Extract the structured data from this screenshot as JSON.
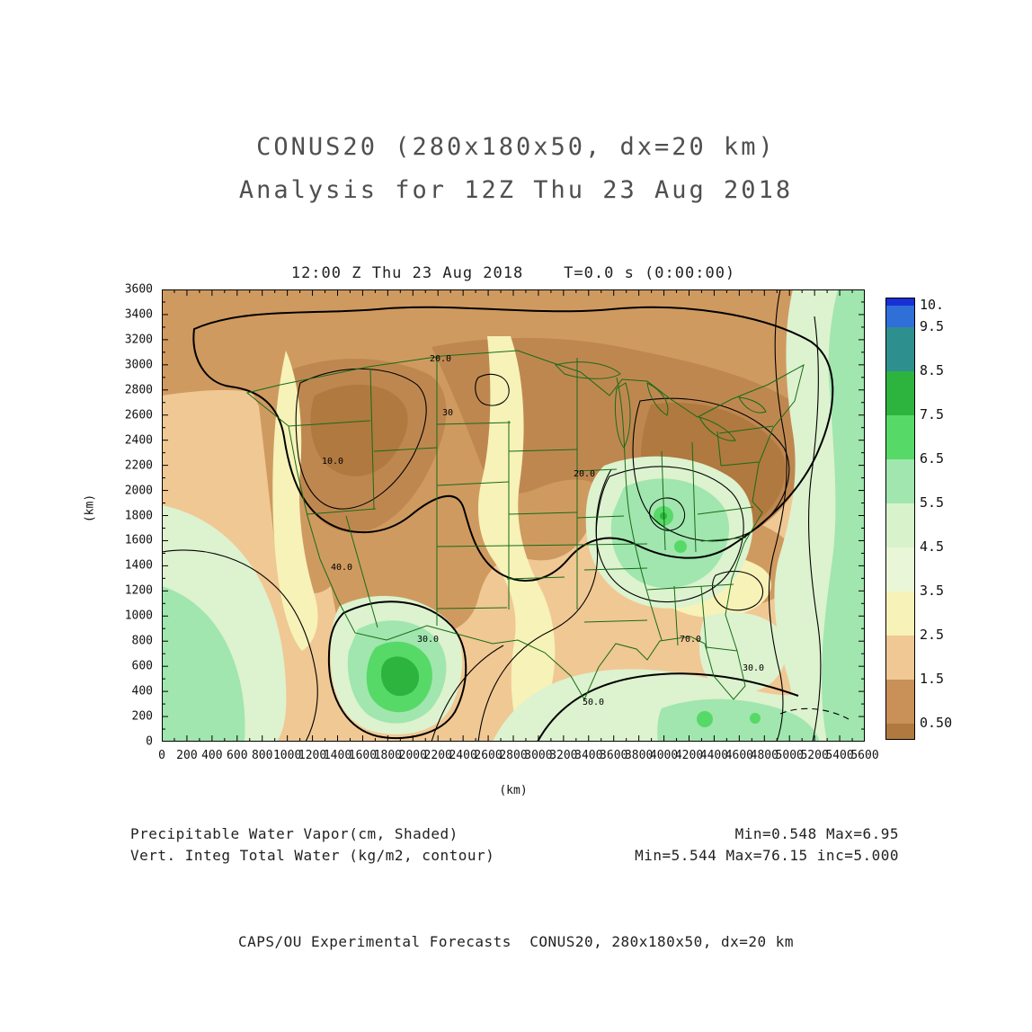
{
  "page": {
    "title_line1": "CONUS20 (280x180x50, dx=20 km)",
    "title_line2": "Analysis for 12Z Thu 23 Aug 2018",
    "footer": "CAPS/OU Experimental Forecasts  CONUS20, 280x180x50, dx=20 km",
    "background_color": "#ffffff"
  },
  "chart_data": {
    "type": "heatmap",
    "title": "12:00 Z Thu 23 Aug 2018    T=0.0 s (0:00:00)",
    "xlabel": "(km)",
    "ylabel": "(km)",
    "xlim": [
      0,
      5600
    ],
    "ylim": [
      0,
      3600
    ],
    "tick_step_km": 200,
    "x_tick_labels": [
      "0",
      "200",
      "400",
      "600",
      "800",
      "1000",
      "1200",
      "1400",
      "1600",
      "1800",
      "2000",
      "2200",
      "2400",
      "2600",
      "2800",
      "3000",
      "3200",
      "3400",
      "3600",
      "3800",
      "4000",
      "4200",
      "4400",
      "4600",
      "4800",
      "5000",
      "5200",
      "5400",
      "5600"
    ],
    "y_tick_labels": [
      "3600",
      "3400",
      "3200",
      "3000",
      "2800",
      "2600",
      "2400",
      "2200",
      "2000",
      "1800",
      "1600",
      "1400",
      "1200",
      "1000",
      "800",
      "600",
      "400",
      "200",
      "0"
    ],
    "shaded_field": {
      "name": "Precipitable Water Vapor",
      "units": "cm",
      "min": 0.548,
      "max": 6.95
    },
    "contour_field": {
      "name": "Vert. Integ Total Water",
      "units": "kg/m2",
      "min": 5.544,
      "max": 76.15,
      "interval": 5.0
    },
    "colorbar": {
      "labels": [
        "10.",
        "9.5",
        "8.5",
        "7.5",
        "6.5",
        "5.5",
        "4.5",
        "3.5",
        "2.5",
        "1.5",
        "0.50"
      ],
      "segments": [
        {
          "height": 8,
          "color": "#1a2fd6",
          "label": "10."
        },
        {
          "height": 24,
          "color": "#2f6fd8",
          "label": "9.5"
        },
        {
          "height": 49,
          "color": "#2e8f8f",
          "label": "8.5"
        },
        {
          "height": 49,
          "color": "#2cb43e",
          "label": "7.5"
        },
        {
          "height": 49,
          "color": "#57d968",
          "label": "6.5"
        },
        {
          "height": 49,
          "color": "#a0e6ae",
          "label": "5.5"
        },
        {
          "height": 49,
          "color": "#d8f2cc",
          "label": "4.5"
        },
        {
          "height": 49,
          "color": "#eaf6d8",
          "label": "3.5"
        },
        {
          "height": 49,
          "color": "#f6f2b8",
          "label": "2.5"
        },
        {
          "height": 49,
          "color": "#f0c894",
          "label": "1.5"
        },
        {
          "height": 49,
          "color": "#c99058",
          "label": "0.50"
        },
        {
          "height": 17,
          "color": "#b0793f",
          "label": ""
        }
      ]
    },
    "contour_labels": [
      {
        "text": "20.0",
        "x": 298,
        "y": 80
      },
      {
        "text": "30",
        "x": 312,
        "y": 140
      },
      {
        "text": "10.0",
        "x": 178,
        "y": 194
      },
      {
        "text": "20.0",
        "x": 458,
        "y": 208
      },
      {
        "text": "40.0",
        "x": 188,
        "y": 312
      },
      {
        "text": "30.0",
        "x": 284,
        "y": 392
      },
      {
        "text": "50.0",
        "x": 468,
        "y": 462
      },
      {
        "text": "70.0",
        "x": 576,
        "y": 392
      },
      {
        "text": "30.0",
        "x": 646,
        "y": 424
      }
    ]
  },
  "annotations": {
    "shaded_label": "Precipitable Water Vapor(cm, Shaded)",
    "contour_label": "Vert. Integ Total Water (kg/m2, contour)",
    "shaded_minmax": "Min=0.548 Max=6.95",
    "contour_minmax": "Min=5.544 Max=76.15 inc=5.000"
  }
}
